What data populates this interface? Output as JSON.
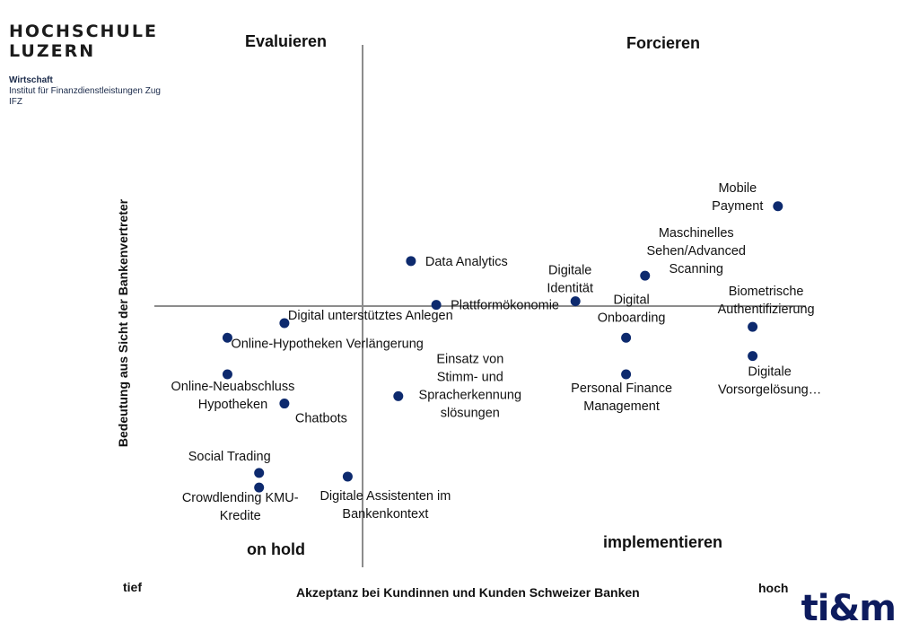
{
  "logo": {
    "line1": "HOCHSCHULE",
    "line2": "LUZERN",
    "dept": "Wirtschaft",
    "institute": "Institut für Finanzdienstleistungen Zug",
    "abbr": "IFZ"
  },
  "brand": "ti&m",
  "quadrants": {
    "top_left": "Evaluieren",
    "top_right": "Forcieren",
    "bottom_left": "on hold",
    "bottom_right": "implementieren"
  },
  "colors": {
    "point": "#0d2a6e",
    "axis": "#8c8c8c",
    "brand": "#0d1b5e"
  },
  "chart_data": {
    "type": "scatter",
    "xlabel": "Akzeptanz bei Kundinnen und Kunden Schweizer Banken",
    "ylabel": "Bedeutung aus Sicht der Bankenvertreter",
    "x_low_label": "tief",
    "x_high_label": "hoch",
    "grid": false,
    "points": [
      {
        "label": [
          "Mobile",
          "Payment"
        ],
        "x": 0.96,
        "y": 0.89
      },
      {
        "label": [
          "Maschinelles",
          "Sehen/Advanced",
          "Scanning"
        ],
        "x": 0.75,
        "y": 0.7
      },
      {
        "label": [
          "Digitale",
          "Identität"
        ],
        "x": 0.64,
        "y": 0.63
      },
      {
        "label": [
          "Data Analytics"
        ],
        "x": 0.38,
        "y": 0.74
      },
      {
        "label": [
          "Plattformökonomie"
        ],
        "x": 0.42,
        "y": 0.62
      },
      {
        "label": [
          "Digital",
          "Onboarding"
        ],
        "x": 0.72,
        "y": 0.53
      },
      {
        "label": [
          "Biometrische",
          "Authentifizierung"
        ],
        "x": 0.92,
        "y": 0.56
      },
      {
        "label": [
          "Digitale",
          "Vorsorgelösung…"
        ],
        "x": 0.92,
        "y": 0.48
      },
      {
        "label": [
          "Personal Finance",
          "Management"
        ],
        "x": 0.72,
        "y": 0.43
      },
      {
        "label": [
          "Einsatz von",
          "Stimm- und",
          "Spracherkennung",
          "slösungen"
        ],
        "x": 0.36,
        "y": 0.37
      },
      {
        "label": [
          "Digital unterstütztes Anlegen"
        ],
        "x": 0.18,
        "y": 0.57
      },
      {
        "label": [
          "Online-Hypotheken Verlängerung"
        ],
        "x": 0.09,
        "y": 0.53
      },
      {
        "label": [
          "Online-Neuabschluss",
          "Hypotheken"
        ],
        "x": 0.09,
        "y": 0.43
      },
      {
        "label": [
          "Chatbots"
        ],
        "x": 0.18,
        "y": 0.35
      },
      {
        "label": [
          "Social Trading"
        ],
        "x": 0.14,
        "y": 0.16
      },
      {
        "label": [
          "Crowdlending KMU-",
          "Kredite"
        ],
        "x": 0.14,
        "y": 0.12
      },
      {
        "label": [
          "Digitale Assistenten im",
          "Bankenkontext"
        ],
        "x": 0.28,
        "y": 0.15
      }
    ]
  }
}
